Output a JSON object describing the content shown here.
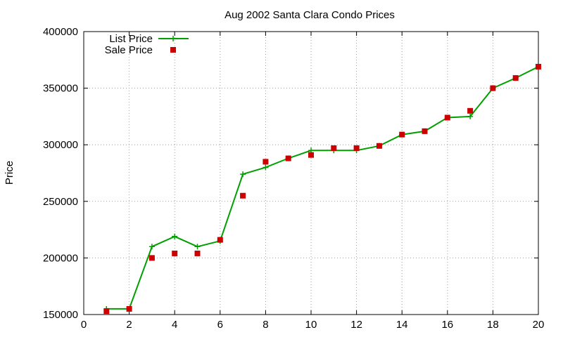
{
  "chart_data": {
    "type": "line",
    "title": "Aug 2002 Santa Clara Condo Prices",
    "xlabel": "",
    "ylabel": "Price",
    "xlim": [
      0,
      20
    ],
    "ylim": [
      150000,
      400000
    ],
    "xticks": [
      0,
      2,
      4,
      6,
      8,
      10,
      12,
      14,
      16,
      18,
      20
    ],
    "yticks": [
      150000,
      200000,
      250000,
      300000,
      350000,
      400000
    ],
    "grid": true,
    "legend_position": "top-left",
    "series": [
      {
        "name": "List Price",
        "style": "line-with-plus-markers",
        "color": "#00a000",
        "x": [
          1,
          2,
          3,
          4,
          5,
          6,
          7,
          8,
          9,
          10,
          11,
          12,
          13,
          14,
          15,
          16,
          17,
          18,
          19,
          20
        ],
        "values": [
          155000,
          155000,
          210000,
          219000,
          210000,
          215000,
          274000,
          280000,
          288000,
          295000,
          295000,
          295000,
          299000,
          309000,
          312000,
          324000,
          325000,
          350000,
          359000,
          369000
        ]
      },
      {
        "name": "Sale Price",
        "style": "square-points",
        "color": "#cc0000",
        "x": [
          1,
          2,
          3,
          4,
          5,
          6,
          7,
          8,
          9,
          10,
          11,
          12,
          13,
          14,
          15,
          16,
          17,
          18,
          19,
          20
        ],
        "values": [
          153000,
          155000,
          200000,
          204000,
          204000,
          216000,
          255000,
          285000,
          288000,
          291000,
          297000,
          297000,
          299000,
          309000,
          312000,
          324000,
          330000,
          350000,
          359000,
          369000
        ]
      }
    ]
  }
}
